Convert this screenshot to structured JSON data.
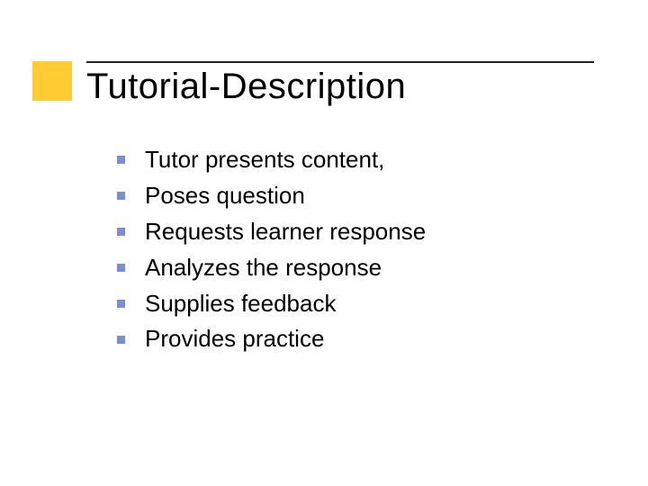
{
  "slide": {
    "title": "Tutorial-Description",
    "title_fontsize": 40,
    "title_color": "#000000",
    "accent_square_color": "#ffcc33",
    "rule_color": "#222222",
    "background_color": "#ffffff",
    "bullet_color": "#7a8fcf",
    "body_fontsize": 26,
    "body_color": "#000000",
    "items": [
      {
        "text": "Tutor presents content,"
      },
      {
        "text": "Poses question"
      },
      {
        "text": "Requests learner response"
      },
      {
        "text": "Analyzes the response"
      },
      {
        "text": "Supplies feedback"
      },
      {
        "text": "Provides practice"
      }
    ]
  }
}
